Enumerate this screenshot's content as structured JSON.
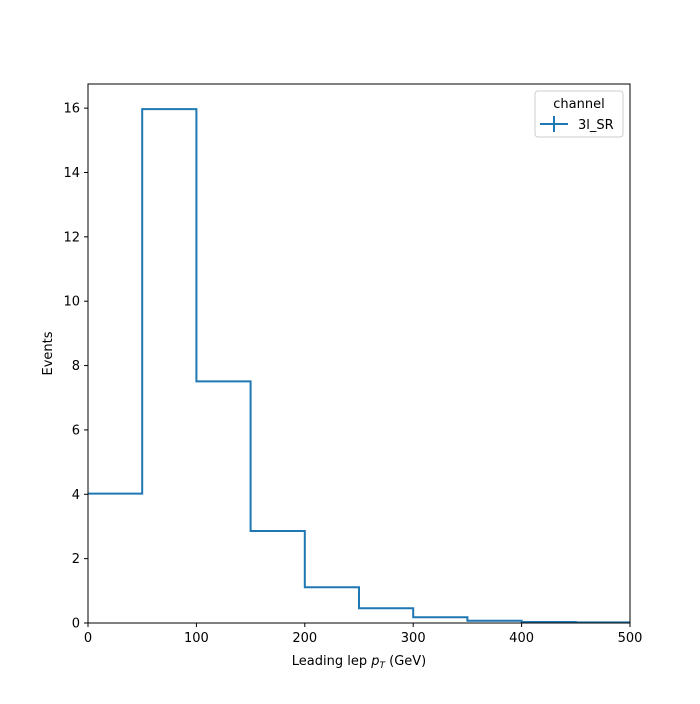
{
  "chart_data": {
    "type": "histogram",
    "title": "",
    "xlabel_prefix": "Leading lep ",
    "xlabel_var_base": "p",
    "xlabel_var_sub": "T",
    "xlabel_suffix": " (GeV)",
    "ylabel": "Events",
    "bin_edges": [
      0,
      50,
      100,
      150,
      200,
      250,
      300,
      350,
      400,
      450,
      500
    ],
    "series": [
      {
        "name": "3l_SR",
        "color": "#1f77b4",
        "values": [
          4.02,
          15.97,
          7.51,
          2.86,
          1.11,
          0.46,
          0.18,
          0.07,
          0.03,
          0.02
        ]
      }
    ],
    "xlim": [
      0,
      500
    ],
    "ylim": [
      0,
      16.75
    ],
    "xticks": [
      0,
      100,
      200,
      300,
      400,
      500
    ],
    "yticks": [
      0,
      2,
      4,
      6,
      8,
      10,
      12,
      14,
      16
    ],
    "legend": {
      "title": "channel",
      "placement": "top-right"
    },
    "grid": false
  }
}
